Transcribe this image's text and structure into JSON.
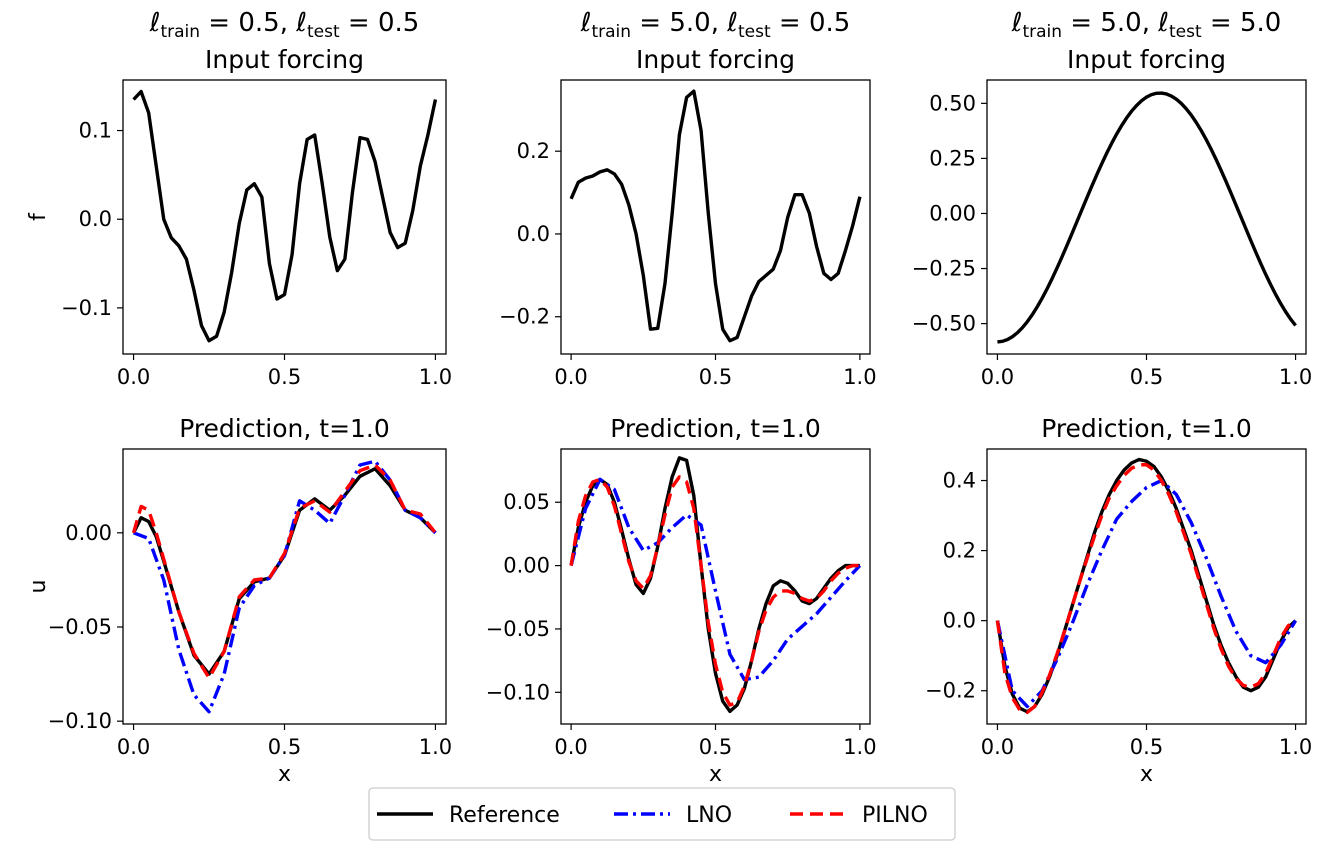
{
  "chart_data": [
    {
      "type": "line",
      "header": {
        "prefix": "ℓ",
        "sub1": "train",
        "mid": " = 0.5, ℓ",
        "sub2": "test",
        "end": " = 0.5"
      },
      "title": "Input forcing",
      "xlabel": "",
      "ylabel": "f",
      "xlim": [
        -0.035,
        1.035
      ],
      "ylim": [
        -0.152,
        0.157
      ],
      "xticks": [
        0.0,
        0.5,
        1.0
      ],
      "xtick_labels": [
        "0.0",
        "0.5",
        "1.0"
      ],
      "yticks": [
        0.1,
        0.0,
        -0.1
      ],
      "ytick_labels": [
        "0.1",
        "0.0",
        "−0.1"
      ],
      "series": [
        {
          "name": "Reference",
          "color": "#000000",
          "dash": "solid",
          "x": [
            0,
            0.025,
            0.05,
            0.075,
            0.1,
            0.125,
            0.15,
            0.175,
            0.2,
            0.225,
            0.25,
            0.275,
            0.3,
            0.325,
            0.35,
            0.375,
            0.4,
            0.425,
            0.45,
            0.475,
            0.5,
            0.525,
            0.55,
            0.575,
            0.6,
            0.625,
            0.65,
            0.675,
            0.7,
            0.725,
            0.75,
            0.775,
            0.8,
            0.825,
            0.85,
            0.875,
            0.9,
            0.925,
            0.95,
            0.975,
            1.0
          ],
          "y": [
            0.135,
            0.144,
            0.12,
            0.06,
            0.0,
            -0.021,
            -0.03,
            -0.045,
            -0.08,
            -0.12,
            -0.137,
            -0.132,
            -0.105,
            -0.06,
            -0.005,
            0.033,
            0.04,
            0.025,
            -0.05,
            -0.09,
            -0.085,
            -0.04,
            0.04,
            0.09,
            0.095,
            0.04,
            -0.02,
            -0.058,
            -0.045,
            0.03,
            0.092,
            0.09,
            0.065,
            0.025,
            -0.015,
            -0.032,
            -0.027,
            0.01,
            0.06,
            0.095,
            0.135
          ]
        }
      ]
    },
    {
      "type": "line",
      "header": {
        "prefix": "ℓ",
        "sub1": "train",
        "mid": " = 5.0, ℓ",
        "sub2": "test",
        "end": " = 0.5"
      },
      "title": "Input forcing",
      "xlabel": "",
      "ylabel": "",
      "xlim": [
        -0.035,
        1.035
      ],
      "ylim": [
        -0.29,
        0.372
      ],
      "xticks": [
        0.0,
        0.5,
        1.0
      ],
      "xtick_labels": [
        "0.0",
        "0.5",
        "1.0"
      ],
      "yticks": [
        0.2,
        0.0,
        -0.2
      ],
      "ytick_labels": [
        "0.2",
        "0.0",
        "−0.2"
      ],
      "series": [
        {
          "name": "Reference",
          "color": "#000000",
          "dash": "solid",
          "x": [
            0,
            0.025,
            0.05,
            0.075,
            0.1,
            0.125,
            0.15,
            0.175,
            0.2,
            0.225,
            0.25,
            0.275,
            0.3,
            0.325,
            0.35,
            0.375,
            0.4,
            0.425,
            0.45,
            0.475,
            0.5,
            0.525,
            0.55,
            0.575,
            0.6,
            0.625,
            0.65,
            0.675,
            0.7,
            0.725,
            0.75,
            0.775,
            0.8,
            0.825,
            0.85,
            0.875,
            0.9,
            0.925,
            0.95,
            0.975,
            1.0
          ],
          "y": [
            0.085,
            0.125,
            0.135,
            0.14,
            0.15,
            0.155,
            0.145,
            0.12,
            0.07,
            0.0,
            -0.1,
            -0.23,
            -0.228,
            -0.12,
            0.05,
            0.24,
            0.33,
            0.345,
            0.25,
            0.05,
            -0.12,
            -0.23,
            -0.258,
            -0.25,
            -0.2,
            -0.15,
            -0.115,
            -0.1,
            -0.085,
            -0.04,
            0.04,
            0.095,
            0.095,
            0.05,
            -0.03,
            -0.095,
            -0.11,
            -0.095,
            -0.04,
            0.02,
            0.09
          ]
        }
      ]
    },
    {
      "type": "line",
      "header": {
        "prefix": "ℓ",
        "sub1": "train",
        "mid": " = 5.0, ℓ",
        "sub2": "test",
        "end": " = 5.0"
      },
      "title": "Input forcing",
      "xlabel": "",
      "ylabel": "",
      "xlim": [
        -0.035,
        1.035
      ],
      "ylim": [
        -0.638,
        0.606
      ],
      "xticks": [
        0.0,
        0.5,
        1.0
      ],
      "xtick_labels": [
        "0.0",
        "0.5",
        "1.0"
      ],
      "yticks": [
        0.5,
        0.25,
        0.0,
        -0.25,
        -0.5
      ],
      "ytick_labels": [
        "0.50",
        "0.25",
        "0.00",
        "−0.25",
        "−0.50"
      ],
      "series": [
        {
          "name": "Reference",
          "color": "#000000",
          "dash": "solid",
          "fn": "cosbump",
          "amp": 0.565,
          "off": -0.018,
          "center": 0.545,
          "n": 60
        }
      ]
    },
    {
      "type": "line",
      "title": "Prediction, t=1.0",
      "xlabel": "x",
      "ylabel": "u",
      "xlim": [
        -0.035,
        1.035
      ],
      "ylim": [
        -0.1015,
        0.0445
      ],
      "xticks": [
        0.0,
        0.5,
        1.0
      ],
      "xtick_labels": [
        "0.0",
        "0.5",
        "1.0"
      ],
      "yticks": [
        0.0,
        -0.05,
        -0.1
      ],
      "ytick_labels": [
        "0.00",
        "−0.05",
        "−0.10"
      ],
      "series": [
        {
          "name": "Reference",
          "color": "#000000",
          "dash": "solid",
          "x": [
            0,
            0.025,
            0.05,
            0.075,
            0.1,
            0.15,
            0.2,
            0.25,
            0.3,
            0.35,
            0.4,
            0.45,
            0.5,
            0.55,
            0.6,
            0.65,
            0.7,
            0.75,
            0.8,
            0.85,
            0.9,
            0.95,
            1.0
          ],
          "y": [
            0.0,
            0.008,
            0.006,
            -0.002,
            -0.015,
            -0.042,
            -0.065,
            -0.075,
            -0.063,
            -0.035,
            -0.026,
            -0.024,
            -0.012,
            0.012,
            0.018,
            0.012,
            0.02,
            0.03,
            0.034,
            0.025,
            0.012,
            0.008,
            0.0
          ]
        },
        {
          "name": "LNO",
          "color": "#0000ff",
          "dash": "dashdot",
          "x": [
            0,
            0.05,
            0.1,
            0.15,
            0.2,
            0.25,
            0.3,
            0.35,
            0.4,
            0.45,
            0.5,
            0.55,
            0.6,
            0.65,
            0.7,
            0.75,
            0.8,
            0.85,
            0.9,
            0.95,
            1.0
          ],
          "y": [
            0.0,
            -0.003,
            -0.025,
            -0.062,
            -0.086,
            -0.095,
            -0.075,
            -0.04,
            -0.028,
            -0.024,
            -0.012,
            0.017,
            0.012,
            0.005,
            0.02,
            0.036,
            0.038,
            0.028,
            0.012,
            0.008,
            0.0
          ]
        },
        {
          "name": "PILNO",
          "color": "#ff0000",
          "dash": "dashed",
          "x": [
            0,
            0.025,
            0.05,
            0.075,
            0.1,
            0.15,
            0.2,
            0.25,
            0.3,
            0.35,
            0.4,
            0.45,
            0.5,
            0.55,
            0.6,
            0.65,
            0.7,
            0.75,
            0.8,
            0.85,
            0.9,
            0.95,
            1.0
          ],
          "y": [
            0.0,
            0.014,
            0.012,
            0.0,
            -0.014,
            -0.042,
            -0.064,
            -0.077,
            -0.063,
            -0.034,
            -0.025,
            -0.024,
            -0.011,
            0.013,
            0.017,
            0.011,
            0.022,
            0.033,
            0.036,
            0.028,
            0.012,
            0.01,
            0.0
          ]
        }
      ]
    },
    {
      "type": "line",
      "title": "Prediction, t=1.0",
      "xlabel": "x",
      "ylabel": "",
      "xlim": [
        -0.035,
        1.035
      ],
      "ylim": [
        -0.125,
        0.092
      ],
      "xticks": [
        0.0,
        0.5,
        1.0
      ],
      "xtick_labels": [
        "0.0",
        "0.5",
        "1.0"
      ],
      "yticks": [
        0.05,
        0.0,
        -0.05,
        -0.1
      ],
      "ytick_labels": [
        "0.05",
        "0.00",
        "−0.05",
        "−0.10"
      ],
      "series": [
        {
          "name": "Reference",
          "color": "#000000",
          "dash": "solid",
          "x": [
            0,
            0.025,
            0.05,
            0.075,
            0.1,
            0.125,
            0.15,
            0.175,
            0.2,
            0.225,
            0.25,
            0.275,
            0.3,
            0.325,
            0.35,
            0.375,
            0.4,
            0.425,
            0.45,
            0.475,
            0.5,
            0.525,
            0.55,
            0.575,
            0.6,
            0.625,
            0.65,
            0.675,
            0.7,
            0.725,
            0.75,
            0.775,
            0.8,
            0.825,
            0.85,
            0.875,
            0.9,
            0.925,
            0.95,
            0.975,
            1.0
          ],
          "y": [
            0.0,
            0.03,
            0.05,
            0.063,
            0.068,
            0.064,
            0.05,
            0.028,
            0.005,
            -0.015,
            -0.022,
            -0.01,
            0.015,
            0.045,
            0.07,
            0.085,
            0.083,
            0.055,
            0.0,
            -0.05,
            -0.085,
            -0.107,
            -0.115,
            -0.11,
            -0.097,
            -0.075,
            -0.05,
            -0.03,
            -0.016,
            -0.012,
            -0.014,
            -0.02,
            -0.028,
            -0.03,
            -0.026,
            -0.018,
            -0.01,
            -0.004,
            0.0,
            0.0,
            0.0
          ]
        },
        {
          "name": "LNO",
          "color": "#0000ff",
          "dash": "dashdot",
          "x": [
            0,
            0.05,
            0.1,
            0.15,
            0.2,
            0.25,
            0.3,
            0.35,
            0.4,
            0.45,
            0.5,
            0.55,
            0.6,
            0.65,
            0.7,
            0.75,
            0.8,
            0.85,
            0.9,
            0.95,
            1.0
          ],
          "y": [
            0.0,
            0.045,
            0.068,
            0.06,
            0.03,
            0.012,
            0.018,
            0.03,
            0.04,
            0.032,
            -0.02,
            -0.07,
            -0.09,
            -0.088,
            -0.075,
            -0.058,
            -0.048,
            -0.038,
            -0.025,
            -0.012,
            0.0
          ]
        },
        {
          "name": "PILNO",
          "color": "#ff0000",
          "dash": "dashed",
          "x": [
            0,
            0.025,
            0.05,
            0.075,
            0.1,
            0.125,
            0.15,
            0.175,
            0.2,
            0.225,
            0.25,
            0.275,
            0.3,
            0.325,
            0.35,
            0.375,
            0.4,
            0.425,
            0.45,
            0.475,
            0.5,
            0.525,
            0.55,
            0.575,
            0.6,
            0.625,
            0.65,
            0.675,
            0.7,
            0.725,
            0.75,
            0.775,
            0.8,
            0.825,
            0.85,
            0.875,
            0.9,
            0.925,
            0.95,
            0.975,
            1.0
          ],
          "y": [
            0.0,
            0.035,
            0.055,
            0.066,
            0.068,
            0.062,
            0.047,
            0.025,
            0.003,
            -0.012,
            -0.018,
            -0.008,
            0.015,
            0.04,
            0.062,
            0.07,
            0.066,
            0.045,
            0.0,
            -0.045,
            -0.078,
            -0.1,
            -0.11,
            -0.108,
            -0.095,
            -0.075,
            -0.052,
            -0.035,
            -0.025,
            -0.02,
            -0.02,
            -0.022,
            -0.026,
            -0.028,
            -0.026,
            -0.02,
            -0.012,
            -0.006,
            -0.002,
            0.0,
            0.0
          ]
        }
      ]
    },
    {
      "type": "line",
      "title": "Prediction, t=1.0",
      "xlabel": "x",
      "ylabel": "",
      "xlim": [
        -0.035,
        1.035
      ],
      "ylim": [
        -0.295,
        0.49
      ],
      "xticks": [
        0.0,
        0.5,
        1.0
      ],
      "xtick_labels": [
        "0.0",
        "0.5",
        "1.0"
      ],
      "yticks": [
        0.4,
        0.2,
        0.0,
        -0.2
      ],
      "ytick_labels": [
        "0.4",
        "0.2",
        "0.0",
        "−0.2"
      ],
      "series": [
        {
          "name": "Reference",
          "color": "#000000",
          "dash": "solid",
          "x": [
            0,
            0.025,
            0.05,
            0.075,
            0.1,
            0.125,
            0.15,
            0.175,
            0.2,
            0.225,
            0.25,
            0.275,
            0.3,
            0.325,
            0.35,
            0.375,
            0.4,
            0.425,
            0.45,
            0.475,
            0.5,
            0.525,
            0.55,
            0.575,
            0.6,
            0.625,
            0.65,
            0.675,
            0.7,
            0.725,
            0.75,
            0.775,
            0.8,
            0.825,
            0.85,
            0.875,
            0.9,
            0.925,
            0.95,
            0.975,
            1.0
          ],
          "y": [
            0.0,
            -0.13,
            -0.21,
            -0.25,
            -0.26,
            -0.245,
            -0.21,
            -0.16,
            -0.1,
            -0.03,
            0.04,
            0.11,
            0.18,
            0.25,
            0.31,
            0.36,
            0.4,
            0.43,
            0.45,
            0.46,
            0.455,
            0.44,
            0.41,
            0.37,
            0.32,
            0.26,
            0.2,
            0.13,
            0.06,
            -0.01,
            -0.07,
            -0.12,
            -0.16,
            -0.19,
            -0.2,
            -0.19,
            -0.16,
            -0.11,
            -0.06,
            -0.02,
            0.0
          ]
        },
        {
          "name": "LNO",
          "color": "#0000ff",
          "dash": "dashdot",
          "x": [
            0,
            0.05,
            0.1,
            0.15,
            0.2,
            0.25,
            0.3,
            0.35,
            0.4,
            0.45,
            0.5,
            0.55,
            0.6,
            0.65,
            0.7,
            0.75,
            0.8,
            0.85,
            0.9,
            0.95,
            1.0
          ],
          "y": [
            0.0,
            -0.2,
            -0.245,
            -0.2,
            -0.11,
            -0.01,
            0.1,
            0.2,
            0.29,
            0.34,
            0.38,
            0.4,
            0.36,
            0.28,
            0.18,
            0.07,
            -0.03,
            -0.1,
            -0.12,
            -0.07,
            0.0
          ]
        },
        {
          "name": "PILNO",
          "color": "#ff0000",
          "dash": "dashed",
          "x": [
            0,
            0.025,
            0.05,
            0.075,
            0.1,
            0.125,
            0.15,
            0.175,
            0.2,
            0.225,
            0.25,
            0.275,
            0.3,
            0.325,
            0.35,
            0.375,
            0.4,
            0.425,
            0.45,
            0.475,
            0.5,
            0.525,
            0.55,
            0.575,
            0.6,
            0.625,
            0.65,
            0.675,
            0.7,
            0.725,
            0.75,
            0.775,
            0.8,
            0.825,
            0.85,
            0.875,
            0.9,
            0.925,
            0.95,
            0.975,
            1.0
          ],
          "y": [
            0.0,
            -0.15,
            -0.22,
            -0.255,
            -0.262,
            -0.245,
            -0.205,
            -0.155,
            -0.095,
            -0.03,
            0.04,
            0.11,
            0.175,
            0.24,
            0.3,
            0.35,
            0.385,
            0.415,
            0.435,
            0.445,
            0.445,
            0.43,
            0.4,
            0.36,
            0.31,
            0.25,
            0.19,
            0.12,
            0.05,
            -0.02,
            -0.08,
            -0.13,
            -0.165,
            -0.185,
            -0.19,
            -0.18,
            -0.15,
            -0.1,
            -0.05,
            -0.015,
            0.0
          ]
        }
      ]
    }
  ],
  "legend": {
    "placement": "bottom-center",
    "entries": [
      {
        "label": "Reference",
        "color": "#000000",
        "dash": "solid"
      },
      {
        "label": "LNO",
        "color": "#0000ff",
        "dash": "dashdot"
      },
      {
        "label": "PILNO",
        "color": "#ff0000",
        "dash": "dashed"
      }
    ]
  }
}
